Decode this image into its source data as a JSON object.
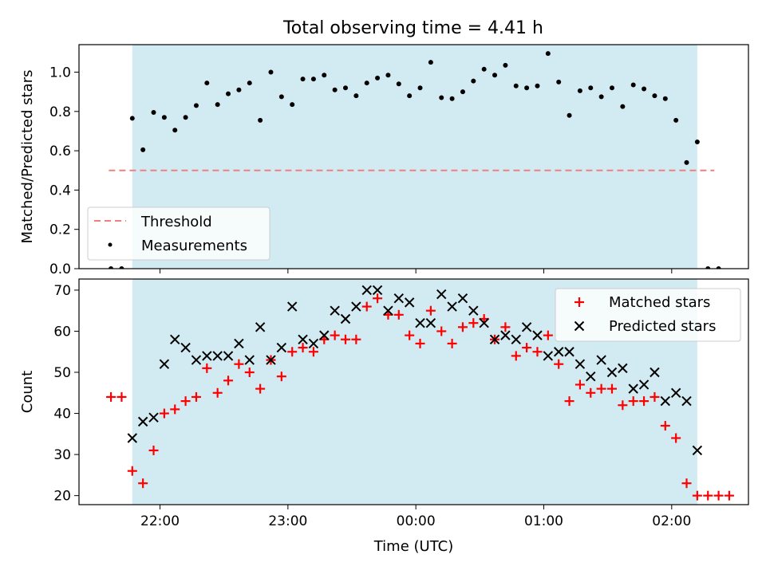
{
  "figure": {
    "title": "Total observing time = 4.41 h"
  },
  "colors": {
    "shade": "#add8e6",
    "threshold": "#f08080",
    "measurement": "#000000",
    "matched": "#ff0000",
    "predicted": "#000000"
  },
  "chart_data": [
    {
      "type": "scatter",
      "ylabel": "Matched/Predicted stars",
      "xlabel": "",
      "xlim": [
        "21:22",
        "02:36"
      ],
      "ylim": [
        0,
        1.14
      ],
      "x_ticks": [
        "22:00",
        "23:00",
        "00:00",
        "01:00",
        "02:00"
      ],
      "y_ticks": [
        "0.0",
        "0.2",
        "0.4",
        "0.6",
        "0.8",
        "1.0"
      ],
      "shaded_span": [
        "21:47",
        "02:12"
      ],
      "threshold": {
        "name": "Threshold",
        "value": 0.5,
        "style": "dashed",
        "x_range": [
          "21:36",
          "02:20"
        ]
      },
      "legend_position": "lower left",
      "series": [
        {
          "name": "Measurements",
          "marker": "dot",
          "x": [
            "21:37",
            "21:42",
            "21:47",
            "21:52",
            "21:57",
            "22:02",
            "22:07",
            "22:12",
            "22:17",
            "22:22",
            "22:27",
            "22:32",
            "22:37",
            "22:42",
            "22:47",
            "22:52",
            "22:57",
            "23:02",
            "23:07",
            "23:12",
            "23:17",
            "23:22",
            "23:27",
            "23:32",
            "23:37",
            "23:42",
            "23:47",
            "23:52",
            "23:57",
            "00:02",
            "00:07",
            "00:12",
            "00:17",
            "00:22",
            "00:27",
            "00:32",
            "00:37",
            "00:42",
            "00:47",
            "00:52",
            "00:57",
            "01:02",
            "01:07",
            "01:12",
            "01:17",
            "01:22",
            "01:27",
            "01:32",
            "01:37",
            "01:42",
            "01:47",
            "01:52",
            "01:57",
            "02:02",
            "02:07",
            "02:12",
            "02:17",
            "02:22"
          ],
          "values": [
            0.0,
            0.0,
            0.765,
            0.605,
            0.795,
            0.77,
            0.705,
            0.77,
            0.83,
            0.945,
            0.835,
            0.89,
            0.91,
            0.945,
            0.755,
            1.0,
            0.875,
            0.835,
            0.965,
            0.965,
            0.985,
            0.91,
            0.92,
            0.88,
            0.945,
            0.97,
            0.985,
            0.94,
            0.88,
            0.92,
            1.05,
            0.87,
            0.865,
            0.9,
            0.955,
            1.015,
            0.985,
            1.035,
            0.93,
            0.92,
            0.93,
            1.095,
            0.95,
            0.78,
            0.905,
            0.92,
            0.875,
            0.92,
            0.825,
            0.935,
            0.915,
            0.88,
            0.865,
            0.755,
            0.54,
            0.645,
            0.0,
            0.0
          ]
        }
      ]
    },
    {
      "type": "scatter",
      "ylabel": "Count",
      "xlabel": "Time (UTC)",
      "xlim": [
        "21:22",
        "02:36"
      ],
      "ylim": [
        17.8,
        72.7
      ],
      "x_ticks": [
        "22:00",
        "23:00",
        "00:00",
        "01:00",
        "02:00"
      ],
      "y_ticks": [
        "20",
        "30",
        "40",
        "50",
        "60",
        "70"
      ],
      "shaded_span": [
        "21:47",
        "02:12"
      ],
      "legend_position": "upper right",
      "series": [
        {
          "name": "Matched stars",
          "marker": "plus",
          "x": [
            "21:37",
            "21:42",
            "21:47",
            "21:52",
            "21:57",
            "22:02",
            "22:07",
            "22:12",
            "22:17",
            "22:22",
            "22:27",
            "22:32",
            "22:37",
            "22:42",
            "22:47",
            "22:52",
            "22:57",
            "23:02",
            "23:07",
            "23:12",
            "23:17",
            "23:22",
            "23:27",
            "23:32",
            "23:37",
            "23:42",
            "23:47",
            "23:52",
            "23:57",
            "00:02",
            "00:07",
            "00:12",
            "00:17",
            "00:22",
            "00:27",
            "00:32",
            "00:37",
            "00:42",
            "00:47",
            "00:52",
            "00:57",
            "01:02",
            "01:07",
            "01:12",
            "01:17",
            "01:22",
            "01:27",
            "01:32",
            "01:37",
            "01:42",
            "01:47",
            "01:52",
            "01:57",
            "02:02",
            "02:07",
            "02:12",
            "02:17",
            "02:22",
            "02:27"
          ],
          "values": [
            44,
            44,
            26,
            23,
            31,
            40,
            41,
            43,
            44,
            51,
            45,
            48,
            52,
            50,
            46,
            53,
            49,
            55,
            56,
            55,
            58,
            59,
            58,
            58,
            66,
            68,
            64,
            64,
            59,
            57,
            65,
            60,
            57,
            61,
            62,
            63,
            58,
            61,
            54,
            56,
            55,
            59,
            52,
            43,
            47,
            45,
            46,
            46,
            42,
            43,
            43,
            44,
            37,
            34,
            23,
            20,
            20,
            20,
            20
          ]
        },
        {
          "name": "Predicted stars",
          "marker": "x",
          "x": [
            "21:47",
            "21:52",
            "21:57",
            "22:02",
            "22:07",
            "22:12",
            "22:17",
            "22:22",
            "22:27",
            "22:32",
            "22:37",
            "22:42",
            "22:47",
            "22:52",
            "22:57",
            "23:02",
            "23:07",
            "23:12",
            "23:17",
            "23:22",
            "23:27",
            "23:32",
            "23:37",
            "23:42",
            "23:47",
            "23:52",
            "23:57",
            "00:02",
            "00:07",
            "00:12",
            "00:17",
            "00:22",
            "00:27",
            "00:32",
            "00:37",
            "00:42",
            "00:47",
            "00:52",
            "00:57",
            "01:02",
            "01:07",
            "01:12",
            "01:17",
            "01:22",
            "01:27",
            "01:32",
            "01:37",
            "01:42",
            "01:47",
            "01:52",
            "01:57",
            "02:02",
            "02:07",
            "02:12"
          ],
          "values": [
            34,
            38,
            39,
            52,
            58,
            56,
            53,
            54,
            54,
            54,
            57,
            53,
            61,
            53,
            56,
            66,
            58,
            57,
            59,
            65,
            63,
            66,
            70,
            70,
            65,
            68,
            67,
            62,
            62,
            69,
            66,
            68,
            65,
            62,
            58,
            59,
            58,
            61,
            59,
            54,
            55,
            55,
            52,
            49,
            53,
            50,
            51,
            46,
            47,
            50,
            43,
            45,
            43,
            31
          ]
        }
      ]
    }
  ]
}
